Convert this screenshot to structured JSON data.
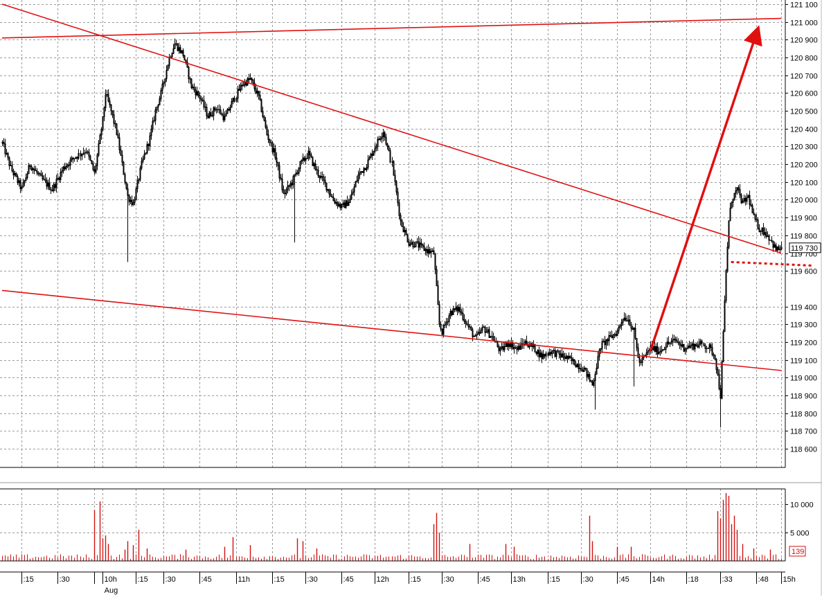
{
  "colors": {
    "background": "#ffffff",
    "grid": "#9a9a9a",
    "candle": "#000000",
    "trendline": "#e01010",
    "volume": "#d01010",
    "price_badge": "#000000",
    "volume_badge": "#d01010"
  },
  "chart_data": [
    {
      "type": "candlestick",
      "panel": "price",
      "title": "",
      "xlabel": "",
      "ylabel": "",
      "ylim": [
        118500,
        121100
      ],
      "grid": true,
      "y_ticks": [
        121100,
        121000,
        120900,
        120800,
        120700,
        120600,
        120500,
        120400,
        120300,
        120200,
        120100,
        120000,
        119900,
        119800,
        119700,
        119600,
        119400,
        119300,
        119200,
        119100,
        119000,
        118900,
        118800,
        118700,
        118600
      ],
      "y_tick_labels": [
        "121 100",
        "121 000",
        "120 900",
        "120 800",
        "120 700",
        "120 600",
        "120 500",
        "120 400",
        "120 300",
        "120 200",
        "120 100",
        "120 000",
        "119 900",
        "119 800",
        "119 700",
        "119 600",
        "119 400",
        "119 300",
        "119 200",
        "119 100",
        "119 000",
        "118 900",
        "118 800",
        "118 700",
        "118 600"
      ],
      "last_price": 119730,
      "last_price_label": "119 730",
      "x_range": [
        0,
        280
      ],
      "price_path": [
        [
          0,
          120320
        ],
        [
          3,
          120180
        ],
        [
          7,
          120060
        ],
        [
          10,
          120200
        ],
        [
          14,
          120120
        ],
        [
          18,
          120060
        ],
        [
          22,
          120180
        ],
        [
          26,
          120240
        ],
        [
          30,
          120280
        ],
        [
          33,
          120150
        ],
        [
          36,
          120450
        ],
        [
          37,
          120600
        ],
        [
          39,
          120500
        ],
        [
          41,
          120380
        ],
        [
          43,
          120200
        ],
        [
          45,
          120020
        ],
        [
          47,
          119980
        ],
        [
          50,
          120200
        ],
        [
          53,
          120350
        ],
        [
          55,
          120500
        ],
        [
          57,
          120600
        ],
        [
          60,
          120800
        ],
        [
          62,
          120880
        ],
        [
          65,
          120820
        ],
        [
          68,
          120640
        ],
        [
          71,
          120580
        ],
        [
          74,
          120470
        ],
        [
          77,
          120520
        ],
        [
          80,
          120460
        ],
        [
          83,
          120560
        ],
        [
          86,
          120650
        ],
        [
          89,
          120680
        ],
        [
          92,
          120580
        ],
        [
          95,
          120370
        ],
        [
          98,
          120250
        ],
        [
          101,
          120030
        ],
        [
          104,
          120100
        ],
        [
          107,
          120200
        ],
        [
          110,
          120260
        ],
        [
          113,
          120160
        ],
        [
          116,
          120090
        ],
        [
          119,
          120000
        ],
        [
          122,
          119960
        ],
        [
          125,
          120000
        ],
        [
          128,
          120140
        ],
        [
          131,
          120200
        ],
        [
          134,
          120300
        ],
        [
          137,
          120390
        ],
        [
          140,
          120200
        ],
        [
          143,
          119880
        ],
        [
          146,
          119760
        ],
        [
          149,
          119750
        ],
        [
          152,
          119720
        ],
        [
          155,
          119700
        ],
        [
          156,
          119500
        ],
        [
          157,
          119300
        ],
        [
          158,
          119260
        ],
        [
          161,
          119370
        ],
        [
          164,
          119390
        ],
        [
          167,
          119300
        ],
        [
          170,
          119220
        ],
        [
          173,
          119280
        ],
        [
          176,
          119230
        ],
        [
          179,
          119150
        ],
        [
          182,
          119200
        ],
        [
          185,
          119160
        ],
        [
          188,
          119200
        ],
        [
          191,
          119170
        ],
        [
          194,
          119120
        ],
        [
          197,
          119150
        ],
        [
          200,
          119130
        ],
        [
          203,
          119110
        ],
        [
          206,
          119080
        ],
        [
          209,
          119050
        ],
        [
          212,
          118960
        ],
        [
          215,
          119180
        ],
        [
          218,
          119220
        ],
        [
          221,
          119260
        ],
        [
          223,
          119340
        ],
        [
          225,
          119330
        ],
        [
          227,
          119260
        ],
        [
          229,
          119080
        ],
        [
          231,
          119120
        ],
        [
          233,
          119170
        ],
        [
          236,
          119150
        ],
        [
          239,
          119190
        ],
        [
          242,
          119210
        ],
        [
          245,
          119170
        ],
        [
          248,
          119180
        ],
        [
          251,
          119190
        ],
        [
          254,
          119170
        ],
        [
          256,
          119120
        ],
        [
          258,
          118900
        ],
        [
          259,
          119250
        ],
        [
          260,
          119600
        ],
        [
          261,
          119880
        ],
        [
          262,
          120000
        ],
        [
          264,
          120060
        ],
        [
          266,
          119980
        ],
        [
          268,
          120020
        ],
        [
          270,
          119900
        ],
        [
          272,
          119840
        ],
        [
          274,
          119820
        ],
        [
          276,
          119780
        ],
        [
          278,
          119720
        ],
        [
          280,
          119730
        ]
      ],
      "x_ticks": [
        {
          "pos": 7,
          "label": ":15"
        },
        {
          "pos": 20,
          "label": ":30"
        },
        {
          "pos": 33,
          "label": ""
        },
        {
          "pos": 36,
          "label": "10h"
        },
        {
          "pos": 48,
          "label": ":15"
        },
        {
          "pos": 58,
          "label": ":30"
        },
        {
          "pos": 71,
          "label": ":45"
        },
        {
          "pos": 84,
          "label": "11h"
        },
        {
          "pos": 97,
          "label": ":15"
        },
        {
          "pos": 109,
          "label": ":30"
        },
        {
          "pos": 122,
          "label": ":45"
        },
        {
          "pos": 134,
          "label": "12h"
        },
        {
          "pos": 146,
          "label": ":15"
        },
        {
          "pos": 158,
          "label": ":30"
        },
        {
          "pos": 171,
          "label": ":45"
        },
        {
          "pos": 183,
          "label": "13h"
        },
        {
          "pos": 196,
          "label": ":15"
        },
        {
          "pos": 208,
          "label": ":30"
        },
        {
          "pos": 221,
          "label": ":45"
        },
        {
          "pos": 233,
          "label": "14h"
        },
        {
          "pos": 246,
          "label": ":18"
        },
        {
          "pos": 258,
          "label": ":33"
        },
        {
          "pos": 271,
          "label": ":48"
        },
        {
          "pos": 280,
          "label": "15h"
        }
      ],
      "date_label": "Aug",
      "annotations": [
        {
          "kind": "trendline",
          "from": [
            0,
            120910
          ],
          "to": [
            280,
            121020
          ]
        },
        {
          "kind": "trendline",
          "from": [
            0,
            121100
          ],
          "to": [
            280,
            119700
          ]
        },
        {
          "kind": "trendline",
          "from": [
            0,
            119490
          ],
          "to": [
            280,
            119040
          ]
        },
        {
          "kind": "arrow",
          "from": [
            233,
            119150
          ],
          "to": [
            271,
            120930
          ]
        },
        {
          "kind": "dotted_level",
          "from": [
            262,
            119650
          ],
          "to": [
            291,
            119630
          ]
        }
      ]
    },
    {
      "type": "bar",
      "panel": "volume",
      "title": "",
      "ylim": [
        0,
        12000
      ],
      "y_ticks": [
        10000,
        5000
      ],
      "y_tick_labels": [
        "10 000",
        "5 000"
      ],
      "last_volume": 139,
      "last_volume_label": "139",
      "baseline": 800,
      "spikes": [
        {
          "pos": 33,
          "value": 9000
        },
        {
          "pos": 35,
          "value": 10500
        },
        {
          "pos": 36,
          "value": 4000
        },
        {
          "pos": 37,
          "value": 4500
        },
        {
          "pos": 38,
          "value": 3000
        },
        {
          "pos": 44,
          "value": 2000
        },
        {
          "pos": 45,
          "value": 3500
        },
        {
          "pos": 47,
          "value": 2800
        },
        {
          "pos": 49,
          "value": 5500
        },
        {
          "pos": 52,
          "value": 2200
        },
        {
          "pos": 66,
          "value": 2000
        },
        {
          "pos": 80,
          "value": 2500
        },
        {
          "pos": 83,
          "value": 4200
        },
        {
          "pos": 89,
          "value": 2800
        },
        {
          "pos": 106,
          "value": 4000
        },
        {
          "pos": 108,
          "value": 3500
        },
        {
          "pos": 113,
          "value": 2200
        },
        {
          "pos": 155,
          "value": 6500
        },
        {
          "pos": 156,
          "value": 8500
        },
        {
          "pos": 157,
          "value": 5000
        },
        {
          "pos": 168,
          "value": 3000
        },
        {
          "pos": 181,
          "value": 3000
        },
        {
          "pos": 184,
          "value": 2500
        },
        {
          "pos": 211,
          "value": 8000
        },
        {
          "pos": 212,
          "value": 3500
        },
        {
          "pos": 221,
          "value": 2500
        },
        {
          "pos": 226,
          "value": 2500
        },
        {
          "pos": 257,
          "value": 8800
        },
        {
          "pos": 258,
          "value": 7500
        },
        {
          "pos": 259,
          "value": 10800
        },
        {
          "pos": 260,
          "value": 12000
        },
        {
          "pos": 261,
          "value": 11500
        },
        {
          "pos": 262,
          "value": 6500
        },
        {
          "pos": 263,
          "value": 8000
        },
        {
          "pos": 264,
          "value": 5500
        },
        {
          "pos": 266,
          "value": 3000
        },
        {
          "pos": 270,
          "value": 2200
        },
        {
          "pos": 276,
          "value": 2000
        }
      ]
    }
  ]
}
